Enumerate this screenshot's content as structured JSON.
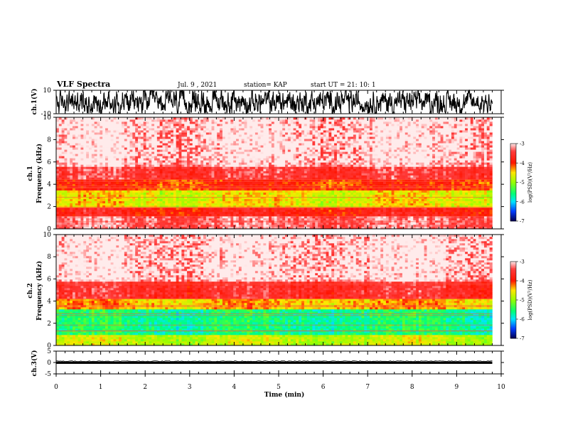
{
  "header": {
    "title": "VLF Spectra",
    "date": "Jul. 9 , 2021",
    "station": "station= KAP",
    "start": "start  UT =   21: 10: 1"
  },
  "chart_data": [
    {
      "type": "line",
      "panel": "ch1-waveform",
      "ylabel": "ch.1(V)",
      "ylim": [
        -10,
        10
      ],
      "yticks": [
        "10",
        "-10"
      ],
      "xlim": [
        0,
        10
      ],
      "description_series": [
        {
          "x": [
            0,
            9.8
          ],
          "values": [
            -10,
            10
          ]
        }
      ]
    },
    {
      "type": "heatmap",
      "panel": "ch1-spectrogram",
      "ylabel": "ch.1\nFrequency (kHz)",
      "ylabel_lines": [
        "ch.1",
        "Frequency (kHz)"
      ],
      "ylim": [
        0,
        10
      ],
      "yticks": [
        "0",
        "2",
        "4",
        "6",
        "8",
        "10"
      ],
      "xlim": [
        0,
        10
      ],
      "data_end_min": 9.8,
      "colorbar": {
        "label": "log(PSD)(V²/Hz)",
        "ticks": [
          "-3",
          "-4",
          "-5",
          "-6",
          "-7"
        ],
        "range": [
          -7,
          -3
        ]
      },
      "bands_khz": [
        {
          "from": 0,
          "to": 1.1,
          "level": -3.3
        },
        {
          "from": 1.1,
          "to": 2.0,
          "level": -3.8
        },
        {
          "from": 2.0,
          "to": 3.5,
          "level": -4.6
        },
        {
          "from": 3.5,
          "to": 4.5,
          "level": -4.0
        },
        {
          "from": 4.5,
          "to": 5.5,
          "level": -3.5
        },
        {
          "from": 5.5,
          "to": 10,
          "level": -3.1
        }
      ]
    },
    {
      "type": "heatmap",
      "panel": "ch2-spectrogram",
      "ylabel": "ch.2\nFrequency (kHz)",
      "ylabel_lines": [
        "ch.2",
        "Frequency (kHz)"
      ],
      "ylim": [
        0,
        10
      ],
      "yticks": [
        "0",
        "2",
        "4",
        "6",
        "8",
        "10"
      ],
      "xlim": [
        0,
        10
      ],
      "data_end_min": 9.8,
      "colorbar": {
        "label": "log(PSD)(V²/Hz)",
        "ticks": [
          "-3",
          "-4",
          "-5",
          "-6",
          "-7"
        ],
        "range": [
          -7,
          -3
        ]
      },
      "bands_khz": [
        {
          "from": 0,
          "to": 1.0,
          "level": -4.8
        },
        {
          "from": 1.0,
          "to": 3.2,
          "level": -5.6
        },
        {
          "from": 3.2,
          "to": 4.2,
          "level": -4.4
        },
        {
          "from": 4.2,
          "to": 5.8,
          "level": -3.6
        },
        {
          "from": 5.8,
          "to": 10,
          "level": -3.1
        }
      ]
    },
    {
      "type": "line",
      "panel": "ch3-waveform",
      "ylabel": "ch.3(V)",
      "ylim": [
        -5,
        5
      ],
      "yticks": [
        "5",
        "0",
        "-5"
      ],
      "xlim": [
        0,
        10
      ],
      "xlabel": "Time (min)",
      "xticks": [
        "0",
        "1",
        "2",
        "3",
        "4",
        "5",
        "6",
        "7",
        "8",
        "9",
        "10"
      ],
      "level_band": [
        -0.6,
        0.4
      ]
    }
  ],
  "colors": {
    "waveform": "#000000",
    "colormap": [
      "#ffffff",
      "#ff0000",
      "#ffff00",
      "#00ff80",
      "#00ffff",
      "#0000ff",
      "#000050"
    ]
  }
}
